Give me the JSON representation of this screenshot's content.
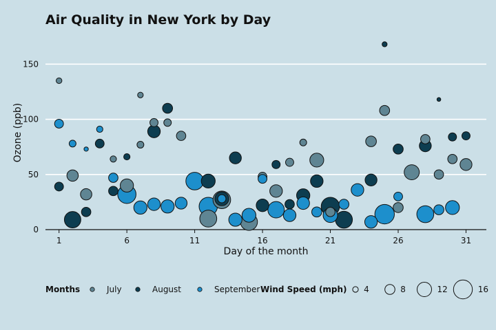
{
  "chart_data": {
    "type": "scatter",
    "title": "Air Quality in New York by Day",
    "xlabel": "Day of the month",
    "ylabel": "Ozone (ppb)",
    "xlim": [
      0,
      32.5
    ],
    "ylim": [
      0,
      172
    ],
    "xticks": [
      1,
      6,
      11,
      16,
      21,
      26,
      31
    ],
    "yticks": [
      0,
      50,
      100,
      150
    ],
    "grid": "horizontal",
    "legend_position": "bottom",
    "colors": {
      "July": "#5f8593",
      "August": "#0d3d50",
      "September": "#1d8fcc"
    },
    "series": [
      {
        "name": "July",
        "points": [
          {
            "x": 1,
            "y": 135,
            "wind": 4.1
          },
          {
            "x": 2,
            "y": 49,
            "wind": 9.2
          },
          {
            "x": 3,
            "y": 32,
            "wind": 9.2
          },
          {
            "x": 5,
            "y": 64,
            "wind": 4.6
          },
          {
            "x": 6,
            "y": 40,
            "wind": 10.9
          },
          {
            "x": 7,
            "y": 77,
            "wind": 5.1
          },
          {
            "x": 7,
            "y": 122,
            "wind": 4.0
          },
          {
            "x": 8,
            "y": 97,
            "wind": 6.3
          },
          {
            "x": 9,
            "y": 97,
            "wind": 5.7
          },
          {
            "x": 10,
            "y": 85,
            "wind": 7.4
          },
          {
            "x": 12,
            "y": 10,
            "wind": 14.3
          },
          {
            "x": 13,
            "y": 27,
            "wind": 14.9
          },
          {
            "x": 15,
            "y": 7,
            "wind": 14.3
          },
          {
            "x": 16,
            "y": 48,
            "wind": 6.9
          },
          {
            "x": 17,
            "y": 35,
            "wind": 10.3
          },
          {
            "x": 18,
            "y": 61,
            "wind": 6.3
          },
          {
            "x": 19,
            "y": 79,
            "wind": 5.1
          },
          {
            "x": 20,
            "y": 63,
            "wind": 11.5
          },
          {
            "x": 21,
            "y": 16,
            "wind": 7.4
          },
          {
            "x": 24,
            "y": 80,
            "wind": 8.6
          },
          {
            "x": 25,
            "y": 108,
            "wind": 8.0
          },
          {
            "x": 26,
            "y": 20,
            "wind": 8.0
          },
          {
            "x": 27,
            "y": 52,
            "wind": 12.6
          },
          {
            "x": 28,
            "y": 82,
            "wind": 7.4
          },
          {
            "x": 29,
            "y": 50,
            "wind": 7.4
          },
          {
            "x": 30,
            "y": 64,
            "wind": 7.4
          },
          {
            "x": 31,
            "y": 59,
            "wind": 9.7
          }
        ]
      },
      {
        "name": "August",
        "points": [
          {
            "x": 1,
            "y": 39,
            "wind": 6.9
          },
          {
            "x": 2,
            "y": 9,
            "wind": 13.8
          },
          {
            "x": 3,
            "y": 16,
            "wind": 7.4
          },
          {
            "x": 4,
            "y": 78,
            "wind": 6.9
          },
          {
            "x": 5,
            "y": 35,
            "wind": 7.4
          },
          {
            "x": 6,
            "y": 66,
            "wind": 4.6
          },
          {
            "x": 8,
            "y": 89,
            "wind": 10.3
          },
          {
            "x": 9,
            "y": 110,
            "wind": 8.0
          },
          {
            "x": 12,
            "y": 44,
            "wind": 11.5
          },
          {
            "x": 13,
            "y": 28,
            "wind": 11.5
          },
          {
            "x": 14,
            "y": 65,
            "wind": 9.7
          },
          {
            "x": 16,
            "y": 22,
            "wind": 10.3
          },
          {
            "x": 17,
            "y": 59,
            "wind": 6.3
          },
          {
            "x": 18,
            "y": 23,
            "wind": 7.4
          },
          {
            "x": 19,
            "y": 31,
            "wind": 10.9
          },
          {
            "x": 20,
            "y": 44,
            "wind": 10.3
          },
          {
            "x": 21,
            "y": 21,
            "wind": 15.5
          },
          {
            "x": 22,
            "y": 9,
            "wind": 14.3
          },
          {
            "x": 24,
            "y": 45,
            "wind": 9.7
          },
          {
            "x": 25,
            "y": 168,
            "wind": 3.4
          },
          {
            "x": 26,
            "y": 73,
            "wind": 8.0
          },
          {
            "x": 28,
            "y": 76,
            "wind": 9.7
          },
          {
            "x": 29,
            "y": 118,
            "wind": 2.3
          },
          {
            "x": 30,
            "y": 84,
            "wind": 6.3
          },
          {
            "x": 31,
            "y": 85,
            "wind": 6.3
          }
        ]
      },
      {
        "name": "September",
        "points": [
          {
            "x": 1,
            "y": 96,
            "wind": 6.9
          },
          {
            "x": 2,
            "y": 78,
            "wind": 5.1
          },
          {
            "x": 3,
            "y": 73,
            "wind": 2.8
          },
          {
            "x": 4,
            "y": 91,
            "wind": 4.6
          },
          {
            "x": 5,
            "y": 47,
            "wind": 7.4
          },
          {
            "x": 6,
            "y": 32,
            "wind": 15.5
          },
          {
            "x": 7,
            "y": 20,
            "wind": 10.9
          },
          {
            "x": 8,
            "y": 23,
            "wind": 10.3
          },
          {
            "x": 9,
            "y": 21,
            "wind": 10.9
          },
          {
            "x": 10,
            "y": 24,
            "wind": 9.7
          },
          {
            "x": 11,
            "y": 44,
            "wind": 14.9
          },
          {
            "x": 12,
            "y": 21,
            "wind": 15.5
          },
          {
            "x": 13,
            "y": 28,
            "wind": 6.3
          },
          {
            "x": 14,
            "y": 9,
            "wind": 10.9
          },
          {
            "x": 15,
            "y": 13,
            "wind": 11.5
          },
          {
            "x": 16,
            "y": 46,
            "wind": 6.9
          },
          {
            "x": 17,
            "y": 18,
            "wind": 13.8
          },
          {
            "x": 18,
            "y": 13,
            "wind": 10.3
          },
          {
            "x": 19,
            "y": 24,
            "wind": 10.3
          },
          {
            "x": 20,
            "y": 16,
            "wind": 8.0
          },
          {
            "x": 21,
            "y": 13,
            "wind": 12.0
          },
          {
            "x": 22,
            "y": 23,
            "wind": 8.0
          },
          {
            "x": 23,
            "y": 36,
            "wind": 10.3
          },
          {
            "x": 24,
            "y": 7,
            "wind": 10.3
          },
          {
            "x": 25,
            "y": 14,
            "wind": 16.6
          },
          {
            "x": 26,
            "y": 30,
            "wind": 6.9
          },
          {
            "x": 28,
            "y": 14,
            "wind": 14.3
          },
          {
            "x": 29,
            "y": 18,
            "wind": 8.0
          },
          {
            "x": 30,
            "y": 20,
            "wind": 11.5
          }
        ]
      }
    ],
    "legend": {
      "color_title": "Months",
      "color_items": [
        "July",
        "August",
        "September"
      ],
      "size_title": "Wind Speed (mph)",
      "size_values": [
        4,
        8,
        12,
        16
      ]
    }
  }
}
